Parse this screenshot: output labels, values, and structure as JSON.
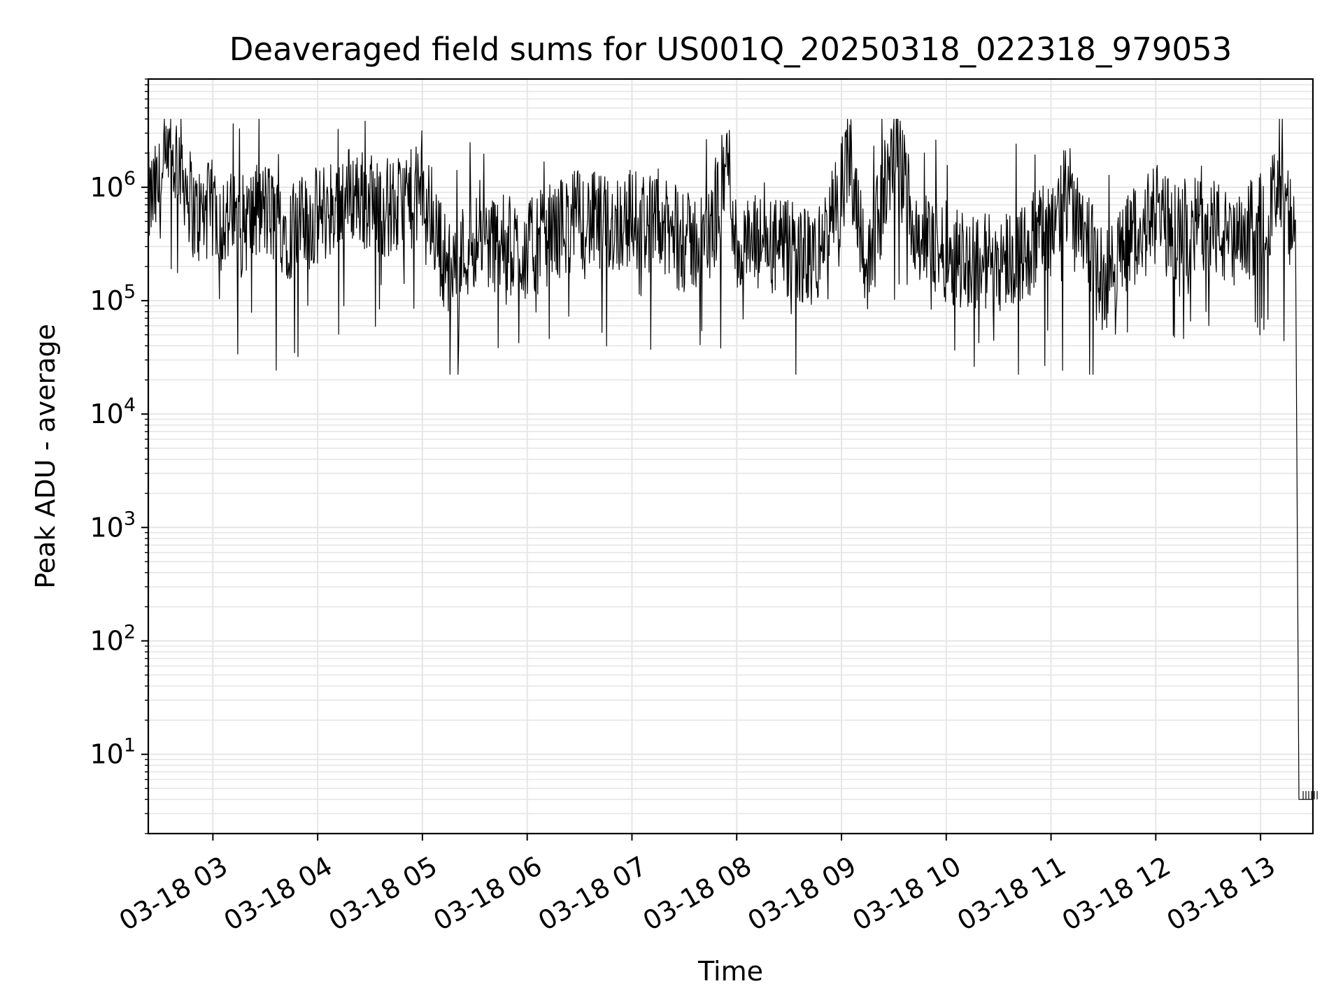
{
  "chart_data": {
    "type": "line",
    "title": "Deaveraged field sums for US001Q_20250318_022318_979053",
    "xlabel": "Time",
    "ylabel": "Peak ADU - average",
    "yscale": "log",
    "ylim": [
      2,
      9000000
    ],
    "xlim": [
      "03-18 02:23",
      "03-18 13:30"
    ],
    "grid": true,
    "line_color": "#000000",
    "grid_color": "#e6e6e6",
    "x_ticks": [
      "03-18 03",
      "03-18 04",
      "03-18 05",
      "03-18 06",
      "03-18 07",
      "03-18 08",
      "03-18 09",
      "03-18 10",
      "03-18 11",
      "03-18 12",
      "03-18 13"
    ],
    "y_ticks": [
      {
        "base": "10",
        "exp": "1"
      },
      {
        "base": "10",
        "exp": "2"
      },
      {
        "base": "10",
        "exp": "3"
      },
      {
        "base": "10",
        "exp": "4"
      },
      {
        "base": "10",
        "exp": "5"
      },
      {
        "base": "10",
        "exp": "6"
      }
    ],
    "series": [
      {
        "x": [
          "03-18 02:23",
          "03-18 02:30",
          "03-18 02:40",
          "03-18 02:50",
          "03-18 03:00",
          "03-18 03:15",
          "03-18 03:30",
          "03-18 03:45",
          "03-18 04:00",
          "03-18 04:10",
          "03-18 04:20",
          "03-18 04:30",
          "03-18 04:45",
          "03-18 05:00",
          "03-18 05:15",
          "03-18 05:30",
          "03-18 05:45",
          "03-18 06:00",
          "03-18 06:10",
          "03-18 06:20",
          "03-18 06:30",
          "03-18 06:45",
          "03-18 07:00",
          "03-18 07:15",
          "03-18 07:30",
          "03-18 07:45",
          "03-18 07:55",
          "03-18 08:00",
          "03-18 08:15",
          "03-18 08:30",
          "03-18 08:45",
          "03-18 08:55",
          "03-18 09:05",
          "03-18 09:15",
          "03-18 09:30",
          "03-18 09:45",
          "03-18 10:00",
          "03-18 10:15",
          "03-18 10:30",
          "03-18 10:45",
          "03-18 11:00",
          "03-18 11:10",
          "03-18 11:20",
          "03-18 11:30",
          "03-18 11:45",
          "03-18 12:00",
          "03-18 12:15",
          "03-18 12:30",
          "03-18 12:45",
          "03-18 13:00",
          "03-18 13:10",
          "03-18 13:15",
          "03-18 13:20",
          "03-18 13:22",
          "03-18 13:30"
        ],
        "y": [
          800000,
          1100000,
          2200000,
          600000,
          700000,
          500000,
          700000,
          450000,
          600000,
          800000,
          1000000,
          800000,
          700000,
          1000000,
          200000,
          400000,
          350000,
          300000,
          400000,
          500000,
          600000,
          500000,
          600000,
          500000,
          350000,
          400000,
          2000000,
          300000,
          350000,
          300000,
          250000,
          600000,
          2000000,
          200000,
          2500000,
          400000,
          300000,
          250000,
          250000,
          300000,
          500000,
          1000000,
          500000,
          150000,
          400000,
          600000,
          400000,
          600000,
          300000,
          600000,
          900000,
          700000,
          300000,
          4,
          4
        ]
      }
    ]
  }
}
